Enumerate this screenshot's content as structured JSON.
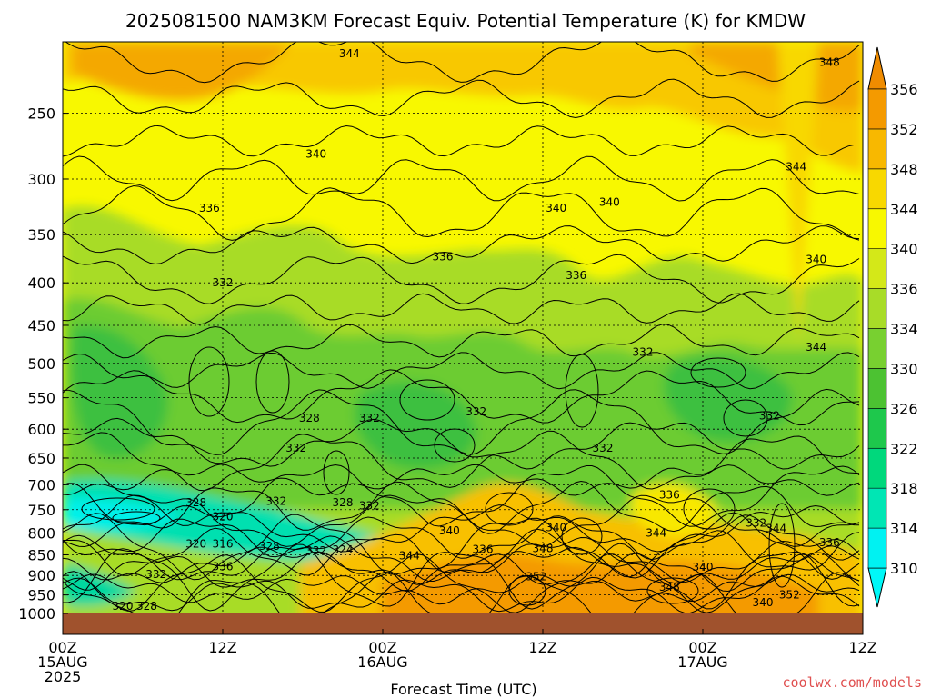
{
  "title": "2025081500 NAM3KM Forecast Equiv. Potential Temperature (K) for KMDW",
  "credit": "coolwx.com/models",
  "chart_data": {
    "type": "heatmap",
    "title": "2025081500 NAM3KM Forecast Equiv. Potential Temperature (K) for KMDW",
    "xlabel": "Forecast Time (UTC)",
    "ylabel": "",
    "x_tick_labels": [
      {
        "hour": 0,
        "lines": [
          "00Z",
          "15AUG",
          "2025"
        ]
      },
      {
        "hour": 12,
        "lines": [
          "12Z"
        ]
      },
      {
        "hour": 24,
        "lines": [
          "00Z",
          "16AUG"
        ]
      },
      {
        "hour": 36,
        "lines": [
          "12Z"
        ]
      },
      {
        "hour": 48,
        "lines": [
          "00Z",
          "17AUG"
        ]
      },
      {
        "hour": 60,
        "lines": [
          "12Z"
        ]
      }
    ],
    "xlim": [
      0,
      60
    ],
    "y_scale": "log-pressure",
    "y_ticks": [
      250,
      300,
      350,
      400,
      450,
      500,
      550,
      600,
      650,
      700,
      750,
      800,
      850,
      900,
      950,
      1000
    ],
    "ylim": [
      1000,
      200
    ],
    "colorbar": {
      "levels": [
        310,
        314,
        318,
        322,
        326,
        330,
        334,
        336,
        340,
        344,
        348,
        352,
        356
      ],
      "colors": [
        "#00f2f2",
        "#00e6b4",
        "#00d87c",
        "#1ec84c",
        "#4cc232",
        "#78d030",
        "#a8dc28",
        "#d4e818",
        "#f8f800",
        "#f8d800",
        "#f8b800",
        "#f49a00"
      ]
    },
    "contour_labels": [
      {
        "text": "344",
        "hour": 21.5,
        "p": 212
      },
      {
        "text": "348",
        "hour": 57.5,
        "p": 217
      },
      {
        "text": "340",
        "hour": 19.0,
        "p": 280
      },
      {
        "text": "344",
        "hour": 55.0,
        "p": 290
      },
      {
        "text": "336",
        "hour": 11.0,
        "p": 325
      },
      {
        "text": "340",
        "hour": 37.0,
        "p": 325
      },
      {
        "text": "340",
        "hour": 41.0,
        "p": 320
      },
      {
        "text": "336",
        "hour": 28.5,
        "p": 372
      },
      {
        "text": "340",
        "hour": 56.5,
        "p": 375
      },
      {
        "text": "336",
        "hour": 38.5,
        "p": 392
      },
      {
        "text": "332",
        "hour": 12.0,
        "p": 400
      },
      {
        "text": "332",
        "hour": 43.5,
        "p": 485
      },
      {
        "text": "344",
        "hour": 56.5,
        "p": 478
      },
      {
        "text": "328",
        "hour": 18.5,
        "p": 582
      },
      {
        "text": "332",
        "hour": 23.0,
        "p": 582
      },
      {
        "text": "332",
        "hour": 31.0,
        "p": 572
      },
      {
        "text": "332",
        "hour": 53.0,
        "p": 578
      },
      {
        "text": "332",
        "hour": 17.5,
        "p": 632
      },
      {
        "text": "332",
        "hour": 40.5,
        "p": 632
      },
      {
        "text": "336",
        "hour": 45.5,
        "p": 720
      },
      {
        "text": "328",
        "hour": 10.0,
        "p": 735
      },
      {
        "text": "332",
        "hour": 16.0,
        "p": 733
      },
      {
        "text": "328",
        "hour": 21.0,
        "p": 735
      },
      {
        "text": "332",
        "hour": 23.0,
        "p": 742
      },
      {
        "text": "320",
        "hour": 12.0,
        "p": 765
      },
      {
        "text": "332",
        "hour": 52.0,
        "p": 778
      },
      {
        "text": "344",
        "hour": 53.5,
        "p": 790
      },
      {
        "text": "340",
        "hour": 29.0,
        "p": 795
      },
      {
        "text": "340",
        "hour": 37.0,
        "p": 788
      },
      {
        "text": "344",
        "hour": 44.5,
        "p": 800
      },
      {
        "text": "320",
        "hour": 10.0,
        "p": 825
      },
      {
        "text": "316",
        "hour": 12.0,
        "p": 825
      },
      {
        "text": "328",
        "hour": 15.5,
        "p": 830
      },
      {
        "text": "332",
        "hour": 19.0,
        "p": 840
      },
      {
        "text": "324",
        "hour": 21.0,
        "p": 838
      },
      {
        "text": "336",
        "hour": 31.5,
        "p": 837
      },
      {
        "text": "348",
        "hour": 36.0,
        "p": 835
      },
      {
        "text": "344",
        "hour": 26.0,
        "p": 852
      },
      {
        "text": "336",
        "hour": 57.5,
        "p": 822
      },
      {
        "text": "336",
        "hour": 12.0,
        "p": 878
      },
      {
        "text": "332",
        "hour": 7.0,
        "p": 897
      },
      {
        "text": "340",
        "hour": 48.0,
        "p": 880
      },
      {
        "text": "352",
        "hour": 35.5,
        "p": 903
      },
      {
        "text": "348",
        "hour": 45.5,
        "p": 930
      },
      {
        "text": "352",
        "hour": 54.5,
        "p": 950
      },
      {
        "text": "340",
        "hour": 52.5,
        "p": 970
      },
      {
        "text": "320",
        "hour": 4.5,
        "p": 980
      },
      {
        "text": "328",
        "hour": 6.3,
        "p": 980
      }
    ]
  }
}
